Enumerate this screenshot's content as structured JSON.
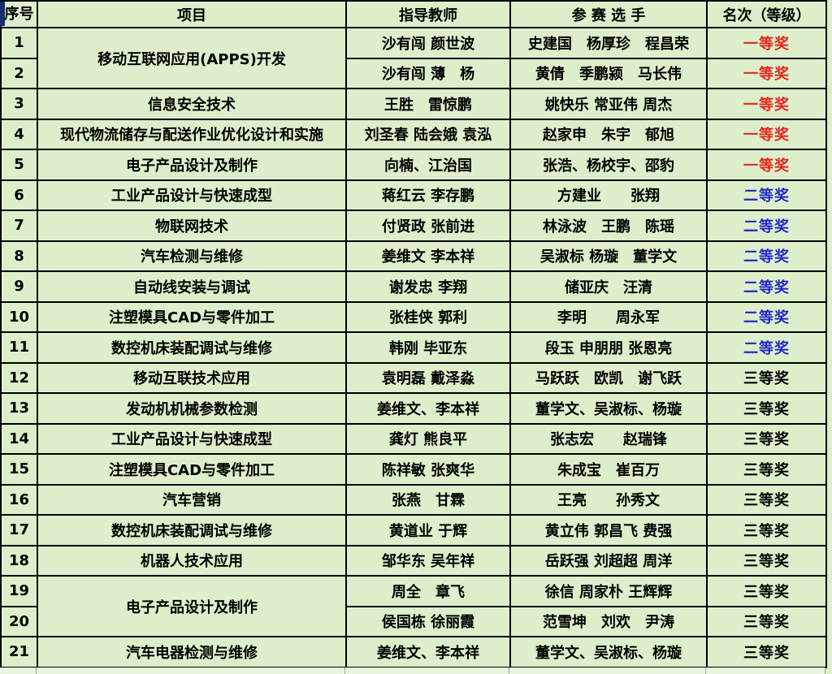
{
  "colors": {
    "table_background": "#dcefca",
    "grid_line": "#000000",
    "award_first": "#e8231a",
    "award_second": "#2428c9",
    "award_third": "#000000",
    "corner_accent": "#1b2d6b"
  },
  "table": {
    "headers": {
      "no": "序号",
      "project": "项目",
      "teachers": "指导教师",
      "contestants": "参 赛 选 手",
      "award": "名次（等级）"
    },
    "rows": [
      {
        "no": "1",
        "project": "移动互联网应用(APPS)开发",
        "project_rowspan": 2,
        "teachers": "沙有闯 颜世波",
        "contestants": "史建国　杨厚珍　程昌荣",
        "award": "一等奖",
        "award_level": "first"
      },
      {
        "no": "2",
        "project": null,
        "teachers": "沙有闯 薄　杨",
        "contestants": "黄倩　季鹏颍　马长伟",
        "award": "一等奖",
        "award_level": "first"
      },
      {
        "no": "3",
        "project": "信息安全技术",
        "teachers": "王胜　雷惊鹏",
        "contestants": "姚快乐 常亚伟 周杰",
        "award": "一等奖",
        "award_level": "first"
      },
      {
        "no": "4",
        "project": "现代物流储存与配送作业优化设计和实施",
        "teachers": "刘圣春 陆会娥 袁泓",
        "contestants": "赵家申　朱宇　郁旭",
        "award": "一等奖",
        "award_level": "first"
      },
      {
        "no": "5",
        "project": "电子产品设计及制作",
        "teachers": "向楠、江治国",
        "contestants": "张浩、杨校宇、邵豹",
        "award": "一等奖",
        "award_level": "first"
      },
      {
        "no": "6",
        "project": "工业产品设计与快速成型",
        "teachers": "蒋红云 李存鹏",
        "contestants": "方建业　　张翔",
        "award": "二等奖",
        "award_level": "second"
      },
      {
        "no": "7",
        "project": "物联网技术",
        "teachers": "付贤政 张前进",
        "contestants": "林泳波　王鹏　陈瑶",
        "award": "二等奖",
        "award_level": "second"
      },
      {
        "no": "8",
        "project": "汽车检测与维修",
        "teachers": "姜维文 李本祥",
        "contestants": "吴淑标 杨璇　董学文",
        "award": "二等奖",
        "award_level": "second"
      },
      {
        "no": "9",
        "project": "自动线安装与调试",
        "teachers": "谢发忠 李翔",
        "contestants": "储亚庆　汪清",
        "award": "二等奖",
        "award_level": "second"
      },
      {
        "no": "10",
        "project": "注塑模具CAD与零件加工",
        "teachers": "张桂侠 郭利",
        "contestants": "李明　　周永军",
        "award": "二等奖",
        "award_level": "second"
      },
      {
        "no": "11",
        "project": "数控机床装配调试与维修",
        "teachers": "韩刚 毕亚东",
        "contestants": "段玉 申朋朋 张恩亮",
        "award": "二等奖",
        "award_level": "second"
      },
      {
        "no": "12",
        "project": "移动互联技术应用",
        "teachers": "袁明磊 戴泽淼",
        "contestants": "马跃跃　欧凯　谢飞跃",
        "award": "三等奖",
        "award_level": "third"
      },
      {
        "no": "13",
        "project": "发动机机械参数检测",
        "teachers": "姜维文、李本祥",
        "contestants": "董学文、吴淑标、杨璇",
        "award": "三等奖",
        "award_level": "third"
      },
      {
        "no": "14",
        "project": "工业产品设计与快速成型",
        "teachers": "龚灯 熊良平",
        "contestants": "张志宏　　赵瑞锋",
        "award": "三等奖",
        "award_level": "third"
      },
      {
        "no": "15",
        "project": "注塑模具CAD与零件加工",
        "teachers": "陈祥敏 张爽华",
        "contestants": "朱成宝　崔百万",
        "award": "三等奖",
        "award_level": "third"
      },
      {
        "no": "16",
        "project": "汽车营销",
        "teachers": "张燕　甘霖",
        "contestants": "王亮　　孙秀文",
        "award": "三等奖",
        "award_level": "third"
      },
      {
        "no": "17",
        "project": "数控机床装配调试与维修",
        "teachers": "黄道业 于辉",
        "contestants": "黄立伟 郭昌飞 费强",
        "award": "三等奖",
        "award_level": "third"
      },
      {
        "no": "18",
        "project": "机器人技术应用",
        "teachers": "邹华东 吴年祥",
        "contestants": "岳跃强 刘超超 周洋",
        "award": "三等奖",
        "award_level": "third"
      },
      {
        "no": "19",
        "project": "电子产品设计及制作",
        "project_rowspan": 2,
        "teachers": "周全　章飞",
        "contestants": "徐信 周家朴 王辉辉",
        "award": "三等奖",
        "award_level": "third"
      },
      {
        "no": "20",
        "project": null,
        "teachers": "侯国栋 徐丽霞",
        "contestants": "范雪坤　刘欢　尹涛",
        "award": "三等奖",
        "award_level": "third"
      },
      {
        "no": "21",
        "project": "汽车电器检测与维修",
        "teachers": "姜维文、李本祥",
        "contestants": "董学文、吴淑标、杨璇",
        "award": "三等奖",
        "award_level": "third"
      }
    ]
  }
}
